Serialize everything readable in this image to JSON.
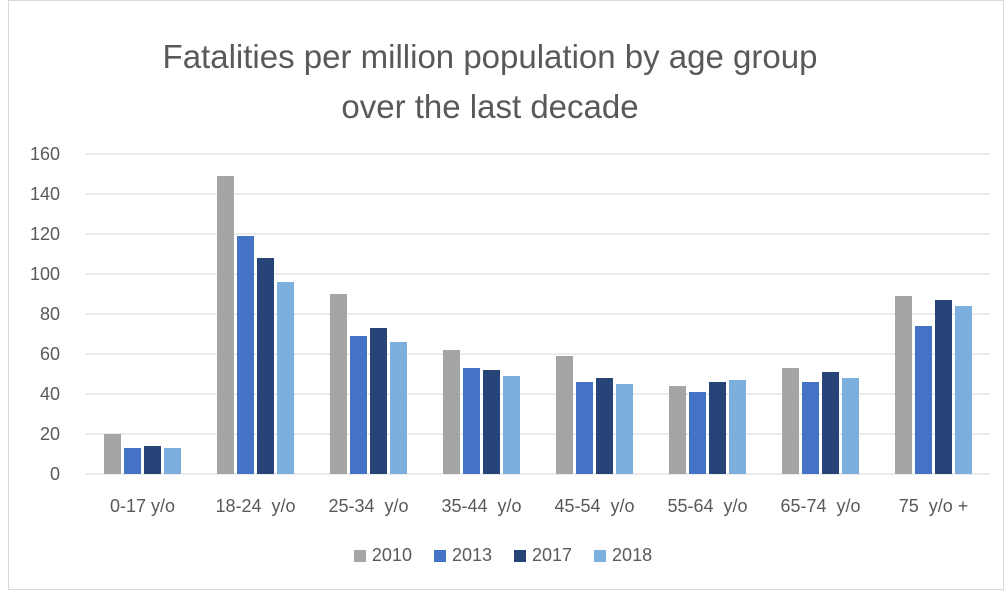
{
  "chart_data": {
    "type": "bar",
    "title_lines": [
      "Fatalities per million population by age group",
      "over the last decade"
    ],
    "categories": [
      "0-17 y/o",
      "18-24  y/o",
      "25-34  y/o",
      "35-44  y/o",
      "45-54  y/o",
      "55-64  y/o",
      "65-74  y/o",
      "75  y/o +"
    ],
    "series": [
      {
        "name": "2010",
        "color": "#a5a5a5",
        "values": [
          20,
          149,
          90,
          62,
          59,
          44,
          53,
          89
        ]
      },
      {
        "name": "2013",
        "color": "#4472c4",
        "values": [
          13,
          119,
          69,
          53,
          46,
          41,
          46,
          74
        ]
      },
      {
        "name": "2017",
        "color": "#264478",
        "values": [
          14,
          108,
          73,
          52,
          48,
          46,
          51,
          87
        ]
      },
      {
        "name": "2018",
        "color": "#7cafdd",
        "values": [
          13,
          96,
          66,
          49,
          45,
          47,
          48,
          84
        ]
      }
    ],
    "ylim": [
      0,
      160
    ],
    "yticks": [
      "0",
      "20",
      "40",
      "60",
      "80",
      "100",
      "120",
      "140",
      "160"
    ],
    "grid": true,
    "legend_position": "bottom"
  }
}
